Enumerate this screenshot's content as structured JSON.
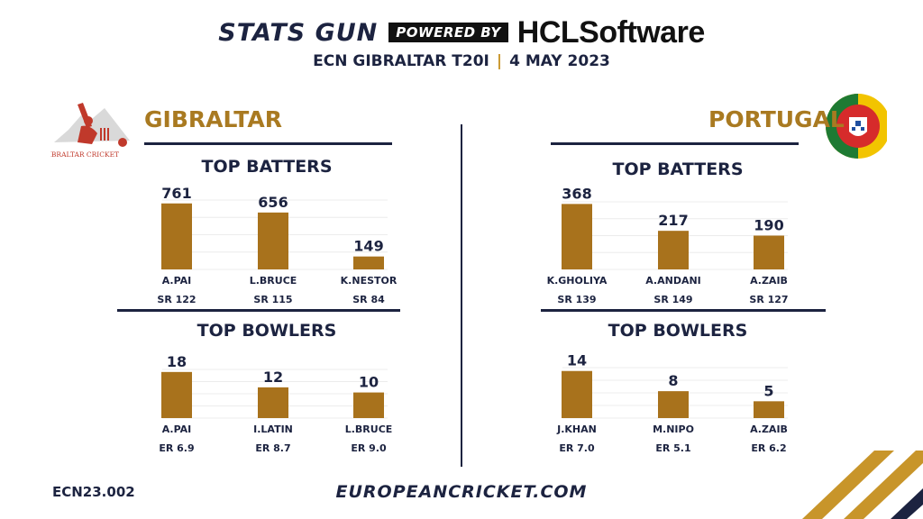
{
  "header": {
    "brand": "STATS GUN",
    "powered_by": "POWERED BY",
    "sponsor": "HCLSoftware",
    "match": "ECN GIBRALTAR T20I",
    "separator": "|",
    "date": "4 MAY 2023"
  },
  "teams": {
    "left": {
      "name": "GIBRALTAR",
      "logo_text": "GIBRALTAR CRICKET"
    },
    "right": {
      "name": "PORTUGAL"
    }
  },
  "colors": {
    "bar": "#a8721c",
    "team_name": "#a97a21",
    "navy": "#1c2340",
    "accent": "#c8952a"
  },
  "footer": {
    "code": "ECN23.002",
    "site": "EUROPEANCRICKET.COM"
  },
  "chart_data": [
    {
      "type": "bar",
      "title": "TOP BATTERS",
      "team": "GIBRALTAR",
      "categories": [
        "A.PAI",
        "L.BRUCE",
        "K.NESTOR"
      ],
      "values": [
        761,
        656,
        149
      ],
      "sublabels": [
        "SR 122",
        "SR 115",
        "SR 84"
      ],
      "ylim": [
        0,
        800
      ],
      "grid": true
    },
    {
      "type": "bar",
      "title": "TOP BATTERS",
      "team": "PORTUGAL",
      "categories": [
        "K.GHOLIYA",
        "A.ANDANI",
        "A.ZAIB"
      ],
      "values": [
        368,
        217,
        190
      ],
      "sublabels": [
        "SR 139",
        "SR 149",
        "SR 127"
      ],
      "ylim": [
        0,
        380
      ],
      "grid": true
    },
    {
      "type": "bar",
      "title": "TOP BOWLERS",
      "team": "GIBRALTAR",
      "categories": [
        "A.PAI",
        "I.LATIN",
        "L.BRUCE"
      ],
      "values": [
        18,
        12,
        10
      ],
      "sublabels": [
        "ER 6.9",
        "ER 8.7",
        "ER 9.0"
      ],
      "ylim": [
        0,
        19
      ],
      "grid": true
    },
    {
      "type": "bar",
      "title": "TOP BOWLERS",
      "team": "PORTUGAL",
      "categories": [
        "J.KHAN",
        "M.NIPO",
        "A.ZAIB"
      ],
      "values": [
        14,
        8,
        5
      ],
      "sublabels": [
        "ER 7.0",
        "ER 5.1",
        "ER 6.2"
      ],
      "ylim": [
        0,
        15
      ],
      "grid": true
    }
  ]
}
